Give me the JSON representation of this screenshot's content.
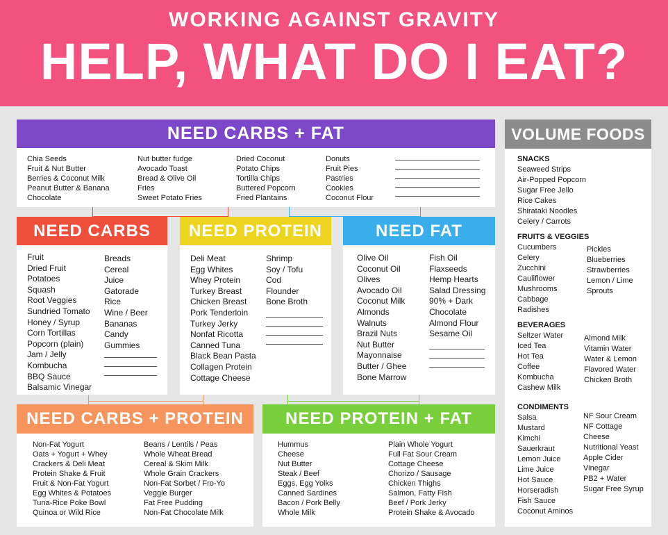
{
  "header": {
    "subtitle": "WORKING AGAINST GRAVITY",
    "title": "HELP, WHAT DO I EAT?"
  },
  "colors": {
    "pink": "#f2527d",
    "purple": "#7c47c9",
    "red": "#ef4e3b",
    "yellow": "#ecd41f",
    "blue": "#3aaeea",
    "orange": "#f5945c",
    "green": "#78cf3b",
    "gray": "#8c8c8c"
  },
  "carbs_fat": {
    "label": "NEED CARBS + FAT",
    "col1": [
      "Chia Seeds",
      "Fruit & Nut Butter",
      "Berries & Coconut Milk",
      "Peanut Butter & Banana",
      "Chocolate"
    ],
    "col2": [
      "Nut butter fudge",
      "Avocado Toast",
      "Bread & Olive Oil",
      "Fries",
      "Sweet Potato Fries"
    ],
    "col3": [
      "Dried Coconut",
      "Potato Chips",
      "Tortilla Chips",
      "Buttered Popcorn",
      "Fried Plantains"
    ],
    "col4": [
      "Donuts",
      "Fruit Pies",
      "Pastries",
      "Cookies",
      "Coconut Flour"
    ]
  },
  "carbs": {
    "label": "NEED CARBS",
    "col1": [
      "Fruit",
      "Dried Fruit",
      "Potatoes",
      "Squash",
      "Root Veggies",
      "Sundried Tomato",
      "Honey / Syrup",
      "Corn Tortillas",
      "Popcorn (plain)",
      "Jam / Jelly",
      "Kombucha",
      "BBQ Sauce",
      "Balsamic Vinegar"
    ],
    "col2": [
      "Breads",
      "Cereal",
      "Juice",
      "Gatorade",
      "Rice",
      "Wine / Beer",
      "Bananas",
      "Candy",
      "Gummies"
    ]
  },
  "protein": {
    "label": "NEED PROTEIN",
    "col1": [
      "Deli Meat",
      "Egg Whites",
      "Whey Protein",
      "Turkey Breast",
      "Chicken Breast",
      "Pork Tenderloin",
      "Turkey Jerky",
      "Nonfat Ricotta",
      "Canned Tuna",
      "Black Bean Pasta",
      "Collagen Protein",
      "Cottage Cheese"
    ],
    "col2": [
      "Shrimp",
      "Soy / Tofu",
      "Cod",
      "Flounder",
      "Bone Broth"
    ]
  },
  "fat": {
    "label": "NEED FAT",
    "col1": [
      "Olive Oil",
      "Coconut Oil",
      "Olives",
      "Avocado Oil",
      "Coconut Milk",
      "Almonds",
      "Walnuts",
      "Brazil Nuts",
      "Nut Butter",
      "Mayonnaise",
      "Butter / Ghee",
      "Bone Marrow"
    ],
    "col2": [
      "Fish Oil",
      "Flaxseeds",
      "Hemp Hearts",
      "Salad Dressing",
      "90% + Dark",
      "Chocolate",
      "Almond Flour",
      "Sesame Oil"
    ]
  },
  "carbs_protein": {
    "label": "NEED CARBS + PROTEIN",
    "col1": [
      "Non-Fat Yogurt",
      "Oats + Yogurt + Whey",
      "Crackers & Deli Meat",
      "Protein Shake & Fruit",
      "Fruit & Non-Fat Yogurt",
      "Egg Whites & Potatoes",
      "Tuna-Rice Poke Bowl",
      "Quinoa or Wild Rice"
    ],
    "col2": [
      "Beans / Lentils / Peas",
      "Whole Wheat Bread",
      "Cereal & Skim Milk",
      "Whole Grain Crackers",
      "Non-Fat Sorbet / Fro-Yo",
      "Veggie Burger",
      "Fat Free Pudding",
      "Non-Fat Chocolate Milk"
    ]
  },
  "protein_fat": {
    "label": "NEED PROTEIN + FAT",
    "col1": [
      "Hummus",
      "Cheese",
      "Nut Butter",
      "Steak / Beef",
      "Eggs, Egg Yolks",
      "Canned Sardines",
      "Bacon / Pork Belly",
      "Whole Milk"
    ],
    "col2": [
      "Plain Whole Yogurt",
      "Full Fat Sour Cream",
      "Cottage Cheese",
      "Chorizo / Sausage",
      "Chicken Thighs",
      "Salmon, Fatty Fish",
      "Beef / Pork Jerky",
      "Protein Shake & Avocado"
    ]
  },
  "volume": {
    "label": "VOLUME FOODS",
    "snacks_label": "SNACKS",
    "snacks": [
      "Seaweed Strips",
      "Air-Popped Popcorn",
      "Sugar Free Jello",
      "Rice Cakes",
      "Shirataki Noodles",
      "Celery / Carrots"
    ],
    "fv_label": "FRUITS & VEGGIES",
    "fv_col1": [
      "Cucumbers",
      "Celery",
      "Zucchini",
      "Cauliflower",
      "Mushrooms",
      "Cabbage",
      "Radishes"
    ],
    "fv_col2": [
      "Pickles",
      "Blueberries",
      "Strawberries",
      "Lemon / Lime",
      "Sprouts"
    ],
    "bev_label": "BEVERAGES",
    "bev_col1": [
      "Seltzer Water",
      "Iced Tea",
      "Hot Tea",
      "Coffee",
      "Kombucha",
      "Cashew Milk"
    ],
    "bev_col2": [
      "Almond Milk",
      "Vitamin Water",
      "Water & Lemon",
      "Flavored Water",
      "Chicken Broth"
    ],
    "cond_label": "CONDIMENTS",
    "cond_col1": [
      "Salsa",
      "Mustard",
      "Kimchi",
      "Sauerkraut",
      "Lemon Juice",
      "Lime Juice",
      "Hot Sauce",
      "Horseradish",
      "Fish Sauce",
      "Coconut Aminos"
    ],
    "cond_col2": [
      "NF Sour Cream",
      "NF Cottage",
      "Cheese",
      "Nutritional Yeast",
      "Apple Cider",
      "Vinegar",
      "PB2 + Water",
      "Sugar Free Syrup"
    ]
  }
}
